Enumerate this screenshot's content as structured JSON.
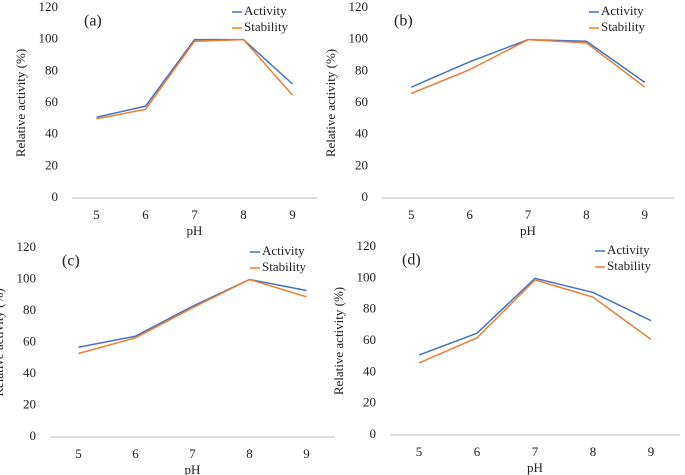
{
  "chart_data": [
    {
      "type": "line",
      "annotation": "(a)",
      "x_label": "pH",
      "y_label": "Relative activity  (%)",
      "categories": [
        "5",
        "6",
        "7",
        "8",
        "9"
      ],
      "ylim": [
        0,
        120
      ],
      "yticks": [
        0,
        20,
        40,
        60,
        80,
        100,
        120
      ],
      "series": [
        {
          "name": "Activity",
          "color": "#4472c4",
          "values": [
            51,
            58,
            100,
            100,
            72
          ]
        },
        {
          "name": "Stability",
          "color": "#ed7d31",
          "values": [
            50,
            56,
            99,
            100,
            65
          ]
        }
      ]
    },
    {
      "type": "line",
      "annotation": "(b)",
      "x_label": "pH",
      "y_label": "Relative activity  (%)",
      "categories": [
        "5",
        "6",
        "7",
        "8",
        "9"
      ],
      "ylim": [
        0,
        120
      ],
      "yticks": [
        0,
        20,
        40,
        60,
        80,
        100,
        120
      ],
      "series": [
        {
          "name": "Activity",
          "color": "#4472c4",
          "values": [
            70,
            86,
            100,
            99,
            73
          ]
        },
        {
          "name": "Stability",
          "color": "#ed7d31",
          "values": [
            66,
            81,
            100,
            98,
            70
          ]
        }
      ]
    },
    {
      "type": "line",
      "annotation": "(c)",
      "x_label": "pH",
      "y_label": "Relative activity  (%)",
      "categories": [
        "5",
        "6",
        "7",
        "8",
        "9"
      ],
      "ylim": [
        0,
        120
      ],
      "yticks": [
        0,
        20,
        40,
        60,
        80,
        100,
        120
      ],
      "series": [
        {
          "name": "Activity",
          "color": "#4472c4",
          "values": [
            57,
            64,
            83,
            100,
            93
          ]
        },
        {
          "name": "Stability",
          "color": "#ed7d31",
          "values": [
            53,
            63,
            82,
            100,
            89
          ]
        }
      ]
    },
    {
      "type": "line",
      "annotation": "(d)",
      "x_label": "pH",
      "y_label": "Relative activity  (%)",
      "categories": [
        "5",
        "6",
        "7",
        "8",
        "9"
      ],
      "ylim": [
        0,
        120
      ],
      "yticks": [
        0,
        20,
        40,
        60,
        80,
        100,
        120
      ],
      "series": [
        {
          "name": "Activity",
          "color": "#4472c4",
          "values": [
            51,
            65,
            100,
            91,
            73
          ]
        },
        {
          "name": "Stability",
          "color": "#ed7d31",
          "values": [
            46,
            62,
            99,
            88,
            61
          ]
        }
      ]
    }
  ]
}
